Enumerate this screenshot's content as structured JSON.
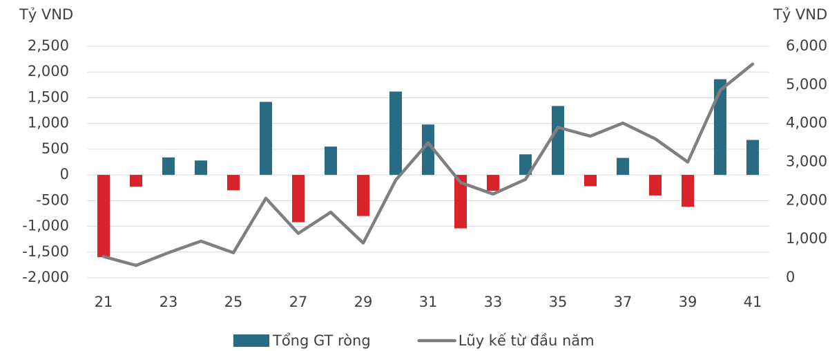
{
  "chart_data": {
    "type": "bar_line",
    "y_axis_label": "Tỷ VND",
    "y2_axis_label": "Tỷ VND",
    "categories": [
      "21",
      null,
      "23",
      null,
      "25",
      null,
      "27",
      null,
      "29",
      null,
      "31",
      null,
      "33",
      null,
      "35",
      null,
      "37",
      null,
      "39",
      null,
      "41"
    ],
    "series": [
      {
        "name": "Tổng GT ròng",
        "type": "bar",
        "color": "#2a6b84",
        "negative_color": "#d9232a",
        "values": [
          -1600,
          -230,
          340,
          280,
          -300,
          1420,
          -920,
          550,
          -800,
          1620,
          980,
          -1040,
          -310,
          400,
          1340,
          -220,
          330,
          -400,
          -620,
          1860,
          680
        ]
      },
      {
        "name": "Lũy kế từ đầu năm",
        "type": "line",
        "axis": "y2",
        "color": "#7f7f7f",
        "values": [
          550,
          320,
          650,
          950,
          650,
          2060,
          1150,
          1700,
          900,
          2530,
          3500,
          2470,
          2170,
          2550,
          3900,
          3670,
          4010,
          3600,
          3000,
          4860,
          5540
        ]
      }
    ],
    "ylim": [
      -2000,
      2500
    ],
    "yticks": [
      {
        "value": -2000,
        "label": "-2,000"
      },
      {
        "value": -1500,
        "label": "-1,500"
      },
      {
        "value": -1000,
        "label": "-1,000"
      },
      -500,
      0,
      500,
      {
        "value": 1000,
        "label": "1,000"
      },
      {
        "value": 1500,
        "label": "1,500"
      },
      {
        "value": 2000,
        "label": "2,000"
      },
      {
        "value": 2500,
        "label": "2,500"
      }
    ],
    "y2lim": [
      0,
      6000
    ],
    "y2ticks": [
      0,
      {
        "value": 1000,
        "label": "1,000"
      },
      {
        "value": 2000,
        "label": "2,000"
      },
      {
        "value": 3000,
        "label": "3,000"
      },
      {
        "value": 4000,
        "label": "4,000"
      },
      {
        "value": 5000,
        "label": "5,000"
      },
      {
        "value": 6000,
        "label": "6,000"
      }
    ],
    "grid": true,
    "legend": "bottom"
  }
}
